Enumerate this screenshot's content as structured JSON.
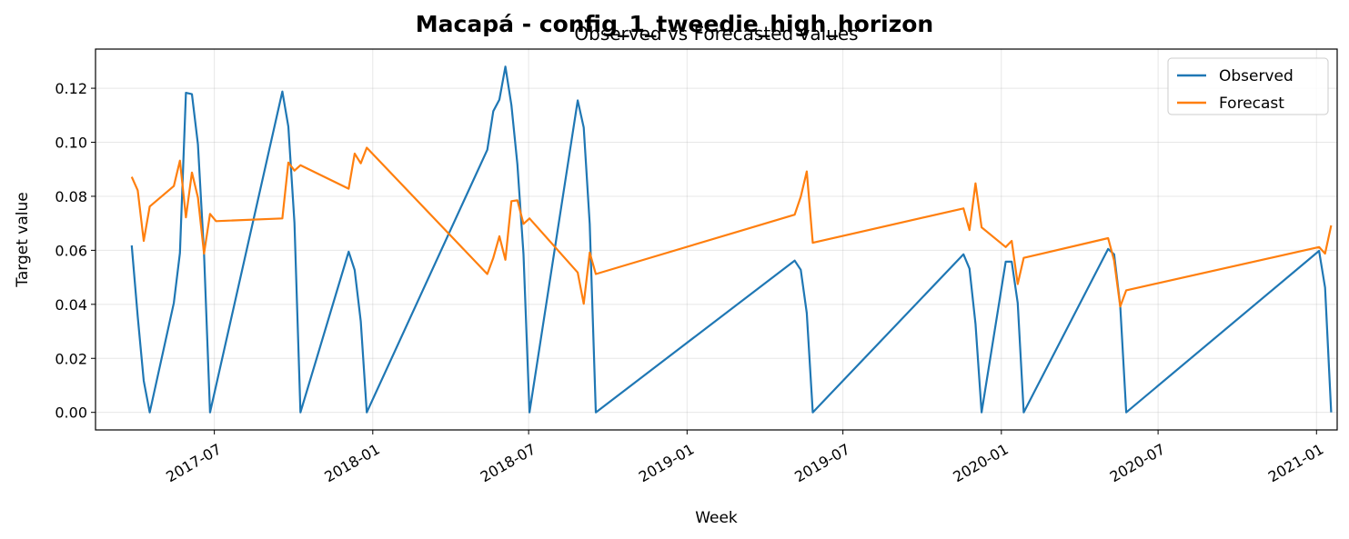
{
  "figure": {
    "suptitle": "Macapá - config_1_tweedie_high_horizon"
  },
  "chart_data": {
    "type": "line",
    "title": "Observed vs Forecasted values",
    "xlabel": "Week",
    "ylabel": "Target value",
    "xlim": [
      "2017-02-13",
      "2021-01-25"
    ],
    "ylim": [
      -0.0065,
      0.1345
    ],
    "yticks": [
      0.0,
      0.02,
      0.04,
      0.06,
      0.08,
      0.1,
      0.12
    ],
    "ytick_labels": [
      "0.00",
      "0.02",
      "0.04",
      "0.06",
      "0.08",
      "0.10",
      "0.12"
    ],
    "xticks": [
      "2017-07-01",
      "2018-01-01",
      "2018-07-01",
      "2019-01-01",
      "2019-07-01",
      "2020-01-01",
      "2020-07-01",
      "2021-01-01"
    ],
    "xtick_labels": [
      "2017-07",
      "2018-01",
      "2018-07",
      "2019-01",
      "2019-07",
      "2020-01",
      "2020-07",
      "2021-01"
    ],
    "grid": true,
    "legend_position": "top-right",
    "series": [
      {
        "name": "Observed",
        "color": "#1f77b4",
        "points": [
          [
            "2017-03-27",
            0.0618
          ],
          [
            "2017-04-03",
            0.0355
          ],
          [
            "2017-04-10",
            0.0117
          ],
          [
            "2017-04-17",
            0.0
          ],
          [
            "2017-05-15",
            0.0405
          ],
          [
            "2017-05-22",
            0.059
          ],
          [
            "2017-05-29",
            0.1183
          ],
          [
            "2017-06-05",
            0.1178
          ],
          [
            "2017-06-12",
            0.0992
          ],
          [
            "2017-06-19",
            0.0588
          ],
          [
            "2017-06-26",
            0.0
          ],
          [
            "2017-09-18",
            0.1188
          ],
          [
            "2017-09-25",
            0.1058
          ],
          [
            "2017-10-02",
            0.0702
          ],
          [
            "2017-10-09",
            0.0
          ],
          [
            "2017-12-04",
            0.0595
          ],
          [
            "2017-12-11",
            0.0527
          ],
          [
            "2017-12-18",
            0.0337
          ],
          [
            "2017-12-25",
            0.0
          ],
          [
            "2018-05-14",
            0.0972
          ],
          [
            "2018-05-21",
            0.1115
          ],
          [
            "2018-05-28",
            0.1158
          ],
          [
            "2018-06-04",
            0.128
          ],
          [
            "2018-06-11",
            0.1138
          ],
          [
            "2018-06-18",
            0.0918
          ],
          [
            "2018-06-25",
            0.0585
          ],
          [
            "2018-07-02",
            0.0
          ],
          [
            "2018-08-27",
            0.1155
          ],
          [
            "2018-09-03",
            0.1055
          ],
          [
            "2018-09-10",
            0.0698
          ],
          [
            "2018-09-17",
            0.0
          ],
          [
            "2019-05-06",
            0.0562
          ],
          [
            "2019-05-13",
            0.0528
          ],
          [
            "2019-05-20",
            0.0368
          ],
          [
            "2019-05-27",
            0.0
          ],
          [
            "2019-11-18",
            0.0585
          ],
          [
            "2019-11-25",
            0.0532
          ],
          [
            "2019-12-02",
            0.0328
          ],
          [
            "2019-12-09",
            0.0
          ],
          [
            "2020-01-06",
            0.0558
          ],
          [
            "2020-01-13",
            0.0558
          ],
          [
            "2020-01-20",
            0.0405
          ],
          [
            "2020-01-27",
            0.0
          ],
          [
            "2020-05-04",
            0.0605
          ],
          [
            "2020-05-11",
            0.0585
          ],
          [
            "2020-05-18",
            0.0395
          ],
          [
            "2020-05-25",
            0.0
          ],
          [
            "2021-01-04",
            0.0598
          ],
          [
            "2021-01-11",
            0.0462
          ],
          [
            "2021-01-18",
            0.0
          ]
        ]
      },
      {
        "name": "Forecast",
        "color": "#ff7f0e",
        "points": [
          [
            "2017-03-27",
            0.0872
          ],
          [
            "2017-04-03",
            0.0822
          ],
          [
            "2017-04-10",
            0.0635
          ],
          [
            "2017-04-17",
            0.0762
          ],
          [
            "2017-05-15",
            0.0838
          ],
          [
            "2017-05-22",
            0.0932
          ],
          [
            "2017-05-29",
            0.0722
          ],
          [
            "2017-06-05",
            0.0888
          ],
          [
            "2017-06-12",
            0.0795
          ],
          [
            "2017-06-19",
            0.0588
          ],
          [
            "2017-06-26",
            0.0735
          ],
          [
            "2017-07-03",
            0.0708
          ],
          [
            "2017-09-18",
            0.0718
          ],
          [
            "2017-09-25",
            0.0925
          ],
          [
            "2017-10-02",
            0.0895
          ],
          [
            "2017-10-09",
            0.0915
          ],
          [
            "2017-12-04",
            0.0828
          ],
          [
            "2017-12-11",
            0.0958
          ],
          [
            "2017-12-18",
            0.0922
          ],
          [
            "2017-12-25",
            0.098
          ],
          [
            "2018-05-14",
            0.0512
          ],
          [
            "2018-05-21",
            0.0572
          ],
          [
            "2018-05-28",
            0.0652
          ],
          [
            "2018-06-04",
            0.0565
          ],
          [
            "2018-06-11",
            0.0782
          ],
          [
            "2018-06-18",
            0.0785
          ],
          [
            "2018-06-25",
            0.0698
          ],
          [
            "2018-07-02",
            0.0718
          ],
          [
            "2018-08-27",
            0.0518
          ],
          [
            "2018-09-03",
            0.0402
          ],
          [
            "2018-09-10",
            0.0592
          ],
          [
            "2018-09-17",
            0.0512
          ],
          [
            "2019-05-06",
            0.0732
          ],
          [
            "2019-05-13",
            0.0798
          ],
          [
            "2019-05-20",
            0.0892
          ],
          [
            "2019-05-27",
            0.0628
          ],
          [
            "2019-11-18",
            0.0755
          ],
          [
            "2019-11-25",
            0.0675
          ],
          [
            "2019-12-02",
            0.0848
          ],
          [
            "2019-12-09",
            0.0685
          ],
          [
            "2020-01-06",
            0.0612
          ],
          [
            "2020-01-13",
            0.0635
          ],
          [
            "2020-01-20",
            0.0475
          ],
          [
            "2020-01-27",
            0.0572
          ],
          [
            "2020-05-04",
            0.0645
          ],
          [
            "2020-05-11",
            0.0562
          ],
          [
            "2020-05-18",
            0.0392
          ],
          [
            "2020-05-25",
            0.0452
          ],
          [
            "2021-01-04",
            0.0612
          ],
          [
            "2021-01-11",
            0.0588
          ],
          [
            "2021-01-18",
            0.0692
          ]
        ]
      }
    ]
  }
}
